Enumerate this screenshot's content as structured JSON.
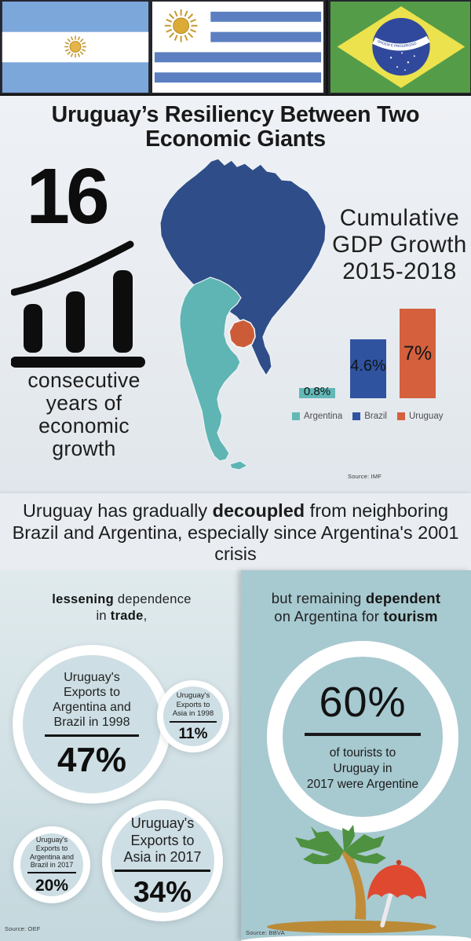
{
  "chart_data": [
    {
      "type": "bar",
      "title": "Cumulative GDP Growth 2015-2018",
      "categories": [
        "Argentina",
        "Brazil",
        "Uruguay"
      ],
      "values": [
        0.8,
        4.6,
        7
      ],
      "unit": "%",
      "data_labels": [
        "0.8%",
        "4.6%",
        "7%"
      ],
      "colors": [
        "#63b8b6",
        "#3053a0",
        "#d4603d"
      ],
      "legend": [
        "Argentina",
        "Brazil",
        "Uruguay"
      ],
      "legend_position": "bottom",
      "ylim": [
        0,
        7.5
      ],
      "grid": false,
      "source": "Source: IMF"
    },
    {
      "type": "bar",
      "title": "lessening dependence in trade,",
      "categories": [
        "Uruguay's Exports to Argentina and Brazil in 1998",
        "Uruguay's Exports to Asia in 1998",
        "Uruguay's Exports to Argentina and Brazil in 2017",
        "Uruguay's Exports to Asia in 2017"
      ],
      "values": [
        47,
        11,
        20,
        34
      ],
      "unit": "%",
      "source": "Source: OEF"
    },
    {
      "type": "stat",
      "title": "but remaining dependent on Argentina for tourism",
      "values": [
        60
      ],
      "unit": "%",
      "label": "of tourists to Uruguay in 2017 were Argentine",
      "source": "Source: BBVA"
    }
  ],
  "flags": {
    "brazil_motto": "ORDEM E PROGRESSO"
  },
  "header": {
    "title": "Uruguay’s Resiliency Between Two\nEconomic Giants"
  },
  "stat16": {
    "number": "16",
    "caption": "consecutive\nyears of\neconomic\ngrowth"
  },
  "gdp": {
    "title": "Cumulative\nGDP Growth\n2015-2018",
    "labels": [
      "0.8%",
      "4.6%",
      "7%"
    ],
    "legend": [
      "Argentina",
      "Brazil",
      "Uruguay"
    ],
    "source": "Source: IMF"
  },
  "midband": {
    "pre": "Uruguay has gradually ",
    "bold": "decoupled",
    "post": " from neighboring Brazil and Argentina, especially since Argentina's 2001 crisis"
  },
  "trade": {
    "header_bold1": "lessening",
    "header_mid": " dependence\nin ",
    "header_bold2": "trade",
    "header_tail": ",",
    "circles": [
      {
        "label": "Uruguay's\nExports to\nArgentina and\nBrazil in 1998",
        "value": "47%"
      },
      {
        "label": "Uruguay's\nExports to\nAsia in 1998",
        "value": "11%"
      },
      {
        "label": "Uruguay's\nExports to\nArgentina and\nBrazil in 2017",
        "value": "20%"
      },
      {
        "label": "Uruguay's\nExports to\nAsia in 2017",
        "value": "34%"
      }
    ],
    "source": "Source: OEF"
  },
  "tourism": {
    "header_pre": "but remaining ",
    "header_bold1": "dependent",
    "header_mid": "\non Argentina for ",
    "header_bold2": "tourism",
    "value": "60%",
    "caption": "of tourists to\nUruguay in\n2017 were Argentine",
    "source": "Source: BBVA"
  }
}
